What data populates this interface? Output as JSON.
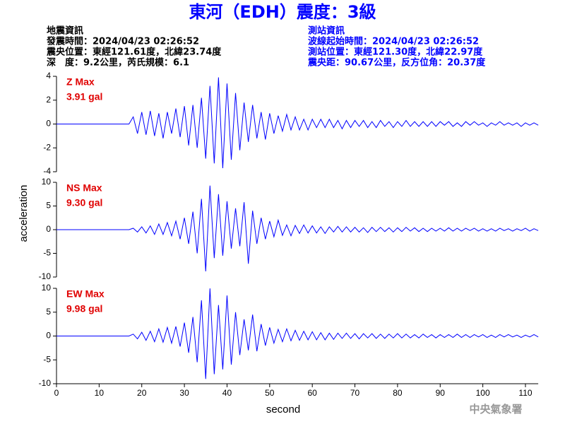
{
  "header": {
    "title": "東河（EDH）震度：3級",
    "left": [
      "地震資訊",
      "發震時間：2024/04/23 02:26:52",
      "震央位置：東經121.61度，北緯23.74度",
      "深　度：9.2公里，芮氏規模：6.1"
    ],
    "right": [
      "測站資訊",
      "波線起始時間：2024/04/23 02:26:52",
      "測站位置：東經121.30度，北緯22.97度",
      "震央距：90.67公里，反方位角：20.37度"
    ]
  },
  "axes": {
    "xlabel": "second",
    "ylabel": "acceleration"
  },
  "footer": "中央氣象署",
  "chart_data": [
    {
      "type": "line",
      "annotations": [
        "Z Max",
        "3.91 gal"
      ],
      "xlim": [
        0,
        113
      ],
      "ylim": [
        -4,
        4
      ],
      "yticks": [
        -4,
        -2,
        0,
        2,
        4
      ],
      "x": [
        0,
        17,
        18,
        19,
        20,
        21,
        22,
        23,
        24,
        25,
        26,
        27,
        28,
        29,
        30,
        31,
        32,
        33,
        34,
        35,
        36,
        37,
        38,
        39,
        40,
        41,
        42,
        43,
        44,
        45,
        46,
        47,
        48,
        49,
        50,
        51,
        52,
        53,
        54,
        55,
        56,
        57,
        58,
        59,
        60,
        61,
        62,
        63,
        64,
        65,
        66,
        67,
        68,
        69,
        70,
        71,
        72,
        73,
        74,
        75,
        76,
        77,
        78,
        79,
        80,
        81,
        82,
        83,
        84,
        85,
        86,
        87,
        88,
        89,
        90,
        91,
        92,
        93,
        94,
        95,
        96,
        97,
        98,
        99,
        100,
        101,
        102,
        103,
        104,
        105,
        106,
        107,
        108,
        109,
        110,
        111,
        112,
        113
      ],
      "series": [
        {
          "color": "#0000ff",
          "values": [
            0,
            0,
            0.6,
            -0.8,
            1.0,
            -0.9,
            1.1,
            -1.0,
            0.9,
            -1.2,
            1.0,
            -0.8,
            1.3,
            -1.1,
            1.5,
            -1.8,
            1.6,
            -2.0,
            2.2,
            -2.9,
            3.2,
            -3.3,
            3.91,
            -3.7,
            3.4,
            -3.0,
            2.6,
            -2.2,
            1.8,
            -1.5,
            1.6,
            -1.2,
            1.0,
            -1.3,
            0.9,
            -0.8,
            0.7,
            -0.6,
            0.8,
            -0.5,
            0.6,
            -0.5,
            0.4,
            -0.5,
            0.4,
            -0.3,
            0.4,
            -0.3,
            0.4,
            -0.3,
            0.3,
            -0.4,
            0.3,
            -0.3,
            0.3,
            -0.2,
            0.3,
            -0.3,
            0.2,
            -0.3,
            0.3,
            -0.2,
            0.2,
            -0.3,
            0.2,
            -0.2,
            0.3,
            -0.2,
            0.2,
            -0.2,
            0.2,
            -0.2,
            0.2,
            -0.2,
            0.2,
            -0.1,
            0.2,
            -0.2,
            0.1,
            -0.2,
            0.2,
            -0.1,
            0.2,
            -0.1,
            0.1,
            -0.2,
            0.1,
            -0.1,
            0.2,
            -0.1,
            0.1,
            -0.1,
            0.1,
            -0.2,
            0.1,
            -0.1,
            0.1,
            -0.1
          ]
        }
      ]
    },
    {
      "type": "line",
      "annotations": [
        "NS Max",
        "9.30 gal"
      ],
      "xlim": [
        0,
        113
      ],
      "ylim": [
        -10,
        10
      ],
      "yticks": [
        -10,
        -5,
        0,
        5,
        10
      ],
      "x": [
        0,
        17,
        18,
        19,
        20,
        21,
        22,
        23,
        24,
        25,
        26,
        27,
        28,
        29,
        30,
        31,
        32,
        33,
        34,
        35,
        36,
        37,
        38,
        39,
        40,
        41,
        42,
        43,
        44,
        45,
        46,
        47,
        48,
        49,
        50,
        51,
        52,
        53,
        54,
        55,
        56,
        57,
        58,
        59,
        60,
        61,
        62,
        63,
        64,
        65,
        66,
        67,
        68,
        69,
        70,
        71,
        72,
        73,
        74,
        75,
        76,
        77,
        78,
        79,
        80,
        81,
        82,
        83,
        84,
        85,
        86,
        87,
        88,
        89,
        90,
        91,
        92,
        93,
        94,
        95,
        96,
        97,
        98,
        99,
        100,
        101,
        102,
        103,
        104,
        105,
        106,
        107,
        108,
        109,
        110,
        111,
        112,
        113
      ],
      "series": [
        {
          "color": "#0000ff",
          "values": [
            0,
            0,
            0.3,
            -0.5,
            0.6,
            -0.7,
            0.8,
            -1.0,
            1.2,
            -1.0,
            1.5,
            -1.3,
            1.8,
            -2.0,
            2.5,
            -3.0,
            3.8,
            -5.0,
            6.5,
            -8.8,
            9.3,
            -6.0,
            7.5,
            -5.5,
            6.0,
            -4.0,
            4.5,
            -3.5,
            5.8,
            -7.2,
            4.0,
            -3.0,
            2.5,
            -2.0,
            1.8,
            -1.5,
            2.0,
            -1.2,
            1.0,
            -1.3,
            0.9,
            -0.8,
            1.0,
            -0.7,
            0.8,
            -0.7,
            0.6,
            -0.8,
            0.6,
            -0.5,
            0.7,
            -0.5,
            0.6,
            -0.5,
            0.5,
            -0.5,
            0.4,
            -0.6,
            0.5,
            -0.4,
            0.5,
            -0.4,
            0.4,
            -0.5,
            0.4,
            -0.4,
            0.5,
            -0.3,
            0.4,
            -0.4,
            0.3,
            -0.4,
            0.3,
            -0.3,
            0.3,
            -0.3,
            0.4,
            -0.3,
            0.3,
            -0.3,
            0.3,
            -0.2,
            0.3,
            -0.3,
            0.2,
            -0.3,
            0.2,
            -0.3,
            0.3,
            -0.2,
            0.2,
            -0.3,
            0.2,
            -0.2,
            0.3,
            -0.3,
            0.2,
            -0.2
          ]
        }
      ]
    },
    {
      "type": "line",
      "annotations": [
        "EW Max",
        "9.98 gal"
      ],
      "xlim": [
        0,
        113
      ],
      "ylim": [
        -10,
        10
      ],
      "yticks": [
        -10,
        -5,
        0,
        5,
        10
      ],
      "xticks": [
        0,
        10,
        20,
        30,
        40,
        50,
        60,
        70,
        80,
        90,
        100,
        110
      ],
      "x": [
        0,
        17,
        18,
        19,
        20,
        21,
        22,
        23,
        24,
        25,
        26,
        27,
        28,
        29,
        30,
        31,
        32,
        33,
        34,
        35,
        36,
        37,
        38,
        39,
        40,
        41,
        42,
        43,
        44,
        45,
        46,
        47,
        48,
        49,
        50,
        51,
        52,
        53,
        54,
        55,
        56,
        57,
        58,
        59,
        60,
        61,
        62,
        63,
        64,
        65,
        66,
        67,
        68,
        69,
        70,
        71,
        72,
        73,
        74,
        75,
        76,
        77,
        78,
        79,
        80,
        81,
        82,
        83,
        84,
        85,
        86,
        87,
        88,
        89,
        90,
        91,
        92,
        93,
        94,
        95,
        96,
        97,
        98,
        99,
        100,
        101,
        102,
        103,
        104,
        105,
        106,
        107,
        108,
        109,
        110,
        111,
        112,
        113
      ],
      "series": [
        {
          "color": "#0000ff",
          "values": [
            0,
            0,
            0.4,
            -0.6,
            0.8,
            -0.9,
            1.0,
            -1.2,
            1.5,
            -1.3,
            1.8,
            -1.5,
            2.0,
            -2.2,
            2.8,
            -3.5,
            4.0,
            -5.5,
            7.5,
            -9.0,
            9.98,
            -8.0,
            6.5,
            -7.0,
            8.5,
            -6.0,
            5.0,
            -4.0,
            3.5,
            -3.0,
            4.5,
            -3.2,
            2.5,
            -2.0,
            1.8,
            -1.5,
            1.4,
            -1.2,
            1.5,
            -1.0,
            1.2,
            -0.9,
            1.0,
            -0.8,
            0.9,
            -0.8,
            0.7,
            -0.8,
            0.6,
            -0.7,
            0.6,
            -0.5,
            0.6,
            -0.5,
            0.5,
            -0.6,
            0.5,
            -0.4,
            0.5,
            -0.5,
            0.4,
            -0.5,
            0.4,
            -0.4,
            0.5,
            -0.4,
            0.4,
            -0.4,
            0.3,
            -0.4,
            0.4,
            -0.3,
            0.3,
            -0.4,
            0.3,
            -0.3,
            0.3,
            -0.3,
            0.4,
            -0.3,
            0.3,
            -0.3,
            0.3,
            -0.2,
            0.3,
            -0.3,
            0.2,
            -0.3,
            0.3,
            -0.2,
            0.3,
            -0.2,
            0.2,
            -0.3,
            0.2,
            -0.2,
            0.3,
            -0.2
          ]
        }
      ]
    }
  ]
}
